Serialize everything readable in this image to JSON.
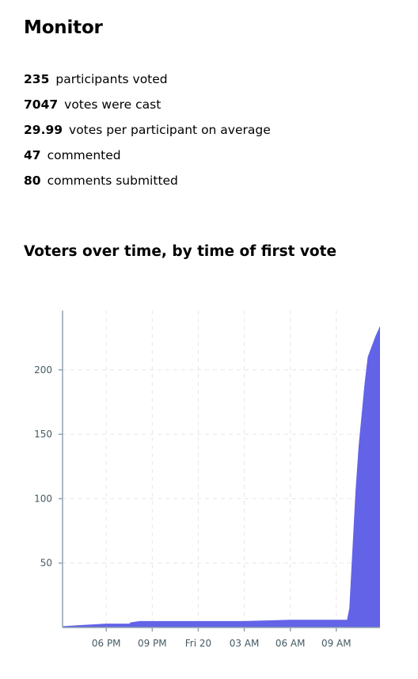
{
  "page": {
    "title": "Monitor"
  },
  "stats": [
    {
      "value": "235",
      "label": "participants voted"
    },
    {
      "value": "7047",
      "label": "votes were cast"
    },
    {
      "value": "29.99",
      "label": "votes per participant on average"
    },
    {
      "value": "47",
      "label": "commented"
    },
    {
      "value": "80",
      "label": "comments submitted"
    }
  ],
  "chart_title": "Voters over time, by time of first vote",
  "chart_data": {
    "type": "area",
    "title": "Voters over time, by time of first vote",
    "xlabel": "",
    "ylabel": "",
    "x_unit": "hours",
    "x_ticks": [
      {
        "label": "06 PM",
        "hour": 18
      },
      {
        "label": "09 PM",
        "hour": 21
      },
      {
        "label": "Fri 20",
        "hour": 24
      },
      {
        "label": "03 AM",
        "hour": 27
      },
      {
        "label": "06 AM",
        "hour": 30
      },
      {
        "label": "09 AM",
        "hour": 33
      }
    ],
    "y_ticks": [
      50,
      100,
      150,
      200
    ],
    "xlim": [
      15.15,
      35.85
    ],
    "ylim": [
      0,
      246
    ],
    "grid": true,
    "color": "#6363e8",
    "series": [
      {
        "points": [
          [
            15.15,
            1
          ],
          [
            16.5,
            2
          ],
          [
            18.0,
            3
          ],
          [
            19.5,
            3
          ],
          [
            19.6,
            4
          ],
          [
            20.2,
            5
          ],
          [
            21.0,
            5
          ],
          [
            24.0,
            5
          ],
          [
            27.0,
            5
          ],
          [
            30.0,
            6
          ],
          [
            33.0,
            6
          ],
          [
            33.7,
            6
          ],
          [
            33.85,
            15
          ],
          [
            34.05,
            60
          ],
          [
            34.25,
            105
          ],
          [
            34.45,
            140
          ],
          [
            34.65,
            165
          ],
          [
            34.85,
            190
          ],
          [
            35.05,
            210
          ],
          [
            35.3,
            218
          ],
          [
            35.55,
            226
          ],
          [
            35.85,
            234
          ]
        ]
      }
    ]
  }
}
